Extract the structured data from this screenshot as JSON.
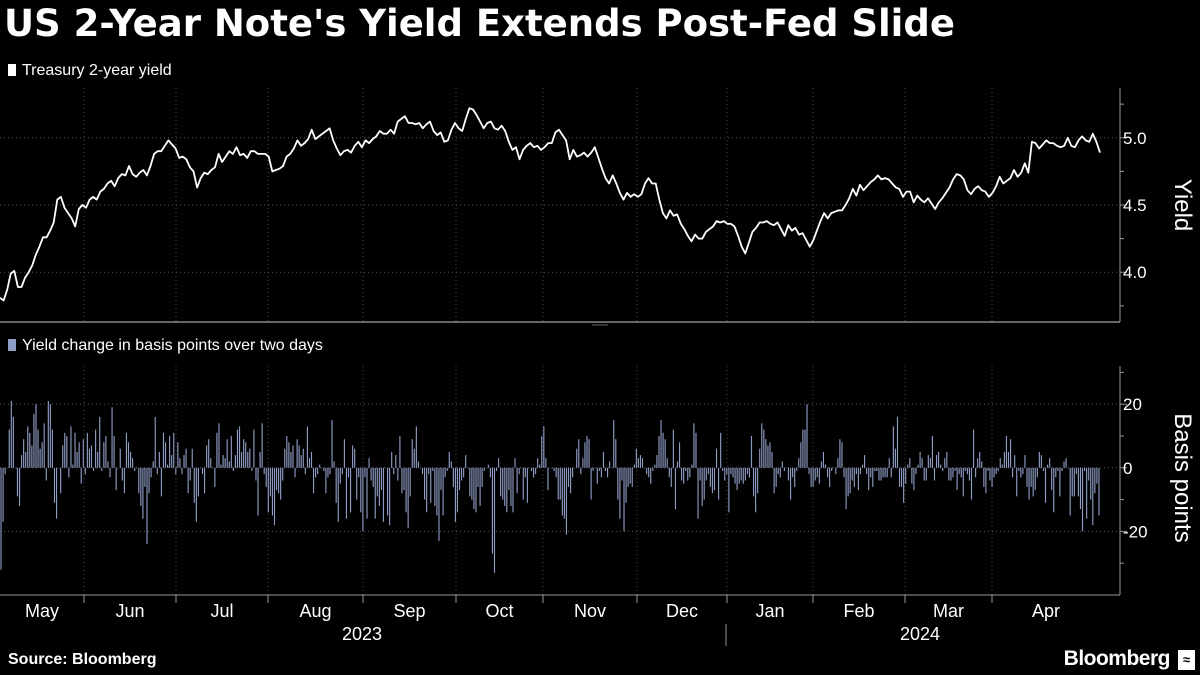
{
  "title": "US 2-Year Note's Yield Extends Post-Fed Slide",
  "source": "Source: Bloomberg",
  "brand": "Bloomberg",
  "colors": {
    "background": "#000000",
    "yield_line": "#ffffff",
    "bars": "#8f9cc4",
    "grid": "#6a6a6a"
  },
  "icons": {
    "brand": "bloomberg-chart-icon"
  },
  "chart_data": [
    {
      "type": "line",
      "legend": "Treasury 2-year yield",
      "ylabel": "Yield",
      "y_ticks": [
        "4.0",
        "4.5",
        "5.0"
      ],
      "ylim": [
        3.63,
        5.37
      ],
      "x_labels": [
        "May",
        "Jun",
        "Jul",
        "Aug",
        "Sep",
        "Oct",
        "Nov",
        "Dec",
        "Jan",
        "Feb",
        "Mar",
        "Apr"
      ],
      "year_labels": [
        "2023",
        "2024"
      ],
      "series": [
        {
          "name": "Treasury 2-year yield",
          "values": [
            3.81,
            3.79,
            3.87,
            3.99,
            4.01,
            3.89,
            3.89,
            3.96,
            4.0,
            4.05,
            4.13,
            4.19,
            4.26,
            4.26,
            4.31,
            4.37,
            4.54,
            4.56,
            4.48,
            4.44,
            4.4,
            4.34,
            4.47,
            4.5,
            4.48,
            4.54,
            4.56,
            4.54,
            4.6,
            4.62,
            4.66,
            4.68,
            4.64,
            4.7,
            4.73,
            4.72,
            4.79,
            4.73,
            4.71,
            4.74,
            4.76,
            4.72,
            4.79,
            4.88,
            4.9,
            4.9,
            4.94,
            4.98,
            4.95,
            4.92,
            4.85,
            4.86,
            4.84,
            4.78,
            4.75,
            4.63,
            4.7,
            4.74,
            4.73,
            4.76,
            4.78,
            4.88,
            4.82,
            4.86,
            4.9,
            4.88,
            4.93,
            4.87,
            4.88,
            4.85,
            4.9,
            4.9,
            4.88,
            4.88,
            4.88,
            4.86,
            4.75,
            4.76,
            4.77,
            4.79,
            4.86,
            4.88,
            4.92,
            4.98,
            4.94,
            4.96,
            4.99,
            5.06,
            4.99,
            5.01,
            5.03,
            5.05,
            5.07,
            4.98,
            4.92,
            4.87,
            4.9,
            4.91,
            4.89,
            4.94,
            4.97,
            4.93,
            4.98,
            4.96,
            4.99,
            5.01,
            5.05,
            5.03,
            5.03,
            5.06,
            5.03,
            5.12,
            5.14,
            5.16,
            5.11,
            5.11,
            5.1,
            5.11,
            5.07,
            5.1,
            5.12,
            5.05,
            5.02,
            5.04,
            4.97,
            4.98,
            5.06,
            5.11,
            5.07,
            5.05,
            5.14,
            5.22,
            5.21,
            5.17,
            5.12,
            5.07,
            5.11,
            5.12,
            5.07,
            5.06,
            5.09,
            5.05,
            4.97,
            4.91,
            4.93,
            4.84,
            4.91,
            4.94,
            4.96,
            4.93,
            4.94,
            4.91,
            4.93,
            4.96,
            4.96,
            5.04,
            5.06,
            5.02,
            4.98,
            4.84,
            4.91,
            4.86,
            4.87,
            4.89,
            4.86,
            4.89,
            4.93,
            4.85,
            4.77,
            4.7,
            4.66,
            4.72,
            4.66,
            4.59,
            4.54,
            4.59,
            4.56,
            4.58,
            4.56,
            4.58,
            4.66,
            4.7,
            4.66,
            4.66,
            4.54,
            4.44,
            4.4,
            4.46,
            4.42,
            4.43,
            4.36,
            4.32,
            4.27,
            4.23,
            4.28,
            4.25,
            4.25,
            4.3,
            4.32,
            4.34,
            4.38,
            4.37,
            4.38,
            4.36,
            4.36,
            4.34,
            4.27,
            4.19,
            4.14,
            4.22,
            4.3,
            4.33,
            4.37,
            4.37,
            4.38,
            4.36,
            4.35,
            4.37,
            4.32,
            4.27,
            4.35,
            4.31,
            4.33,
            4.28,
            4.29,
            4.24,
            4.19,
            4.24,
            4.31,
            4.38,
            4.44,
            4.4,
            4.44,
            4.45,
            4.46,
            4.46,
            4.5,
            4.55,
            4.62,
            4.57,
            4.65,
            4.61,
            4.64,
            4.67,
            4.69,
            4.72,
            4.69,
            4.7,
            4.69,
            4.66,
            4.63,
            4.62,
            4.56,
            4.6,
            4.6,
            4.52,
            4.57,
            4.54,
            4.52,
            4.55,
            4.51,
            4.47,
            4.52,
            4.55,
            4.59,
            4.63,
            4.69,
            4.73,
            4.72,
            4.69,
            4.61,
            4.58,
            4.62,
            4.64,
            4.61,
            4.6,
            4.56,
            4.59,
            4.64,
            4.71,
            4.66,
            4.68,
            4.7,
            4.76,
            4.71,
            4.74,
            4.81,
            4.74,
            4.97,
            4.96,
            4.92,
            4.95,
            4.98,
            4.96,
            4.96,
            4.94,
            4.93,
            4.94,
            5.0,
            4.94,
            4.93,
            4.98,
            5.01,
            4.98,
            4.97,
            5.03,
            4.97,
            4.89
          ]
        }
      ]
    },
    {
      "type": "bar",
      "legend": "Yield change in basis points over two days",
      "ylabel": "Basis points",
      "y_ticks": [
        "20",
        "0",
        "-20"
      ],
      "ylim": [
        -40,
        32
      ],
      "x_labels": [
        "May",
        "Jun",
        "Jul",
        "Aug",
        "Sep",
        "Oct",
        "Nov",
        "Dec",
        "Jan",
        "Feb",
        "Mar",
        "Apr"
      ],
      "year_labels": [
        "2023",
        "2024"
      ],
      "series": [
        {
          "name": "Yield change in basis points over two days",
          "values": [
            -32,
            -17,
            -2,
            0,
            12,
            21,
            16,
            0,
            -9,
            -12,
            4,
            9,
            5,
            13,
            11,
            7,
            17,
            20,
            12,
            6,
            8,
            14,
            -4,
            21,
            20,
            12,
            -11,
            -16,
            0,
            -8,
            7,
            11,
            10,
            -3,
            13,
            1,
            11,
            5,
            8,
            -5,
            9,
            -2,
            11,
            6,
            7,
            -1,
            12,
            5,
            16,
            -1,
            8,
            10,
            2,
            -3,
            19,
            10,
            -7,
            0,
            6,
            -4,
            -8,
            11,
            8,
            5,
            3,
            -1,
            0,
            -8,
            -12,
            -16,
            -6,
            -24,
            -8,
            -3,
            2,
            16,
            -2,
            5,
            -9,
            11,
            8,
            1,
            10,
            4,
            11,
            -2,
            8,
            3,
            -2,
            4,
            6,
            -8,
            -4,
            6,
            -11,
            -17,
            -9,
            0,
            -2,
            -8,
            7,
            9,
            3,
            0,
            -6,
            11,
            14,
            1,
            4,
            3,
            9,
            2,
            10,
            -1,
            4,
            12,
            13,
            5,
            9,
            8,
            5,
            6,
            -1,
            12,
            -4,
            -15,
            5,
            14,
            -2,
            -6,
            -14,
            -9,
            -15,
            -18,
            -7,
            -8,
            -10,
            -4,
            6,
            10,
            8,
            5,
            7,
            -3,
            9,
            7,
            4,
            6,
            -2,
            13,
            3,
            5,
            -8,
            -3,
            -2,
            1,
            0,
            -1,
            -8,
            -3,
            -2,
            15,
            2,
            -11,
            -17,
            -5,
            -2,
            9,
            -16,
            -3,
            -14,
            7,
            6,
            -10,
            -3,
            -14,
            -20,
            -3,
            -16,
            3,
            -4,
            -6,
            -16,
            -9,
            -12,
            -7,
            -17,
            0,
            -15,
            -18,
            5,
            -2,
            4,
            -4,
            10,
            -8,
            -7,
            -14,
            -19,
            -9,
            9,
            6,
            13,
            2,
            0,
            -2,
            -10,
            -14,
            -2,
            -11,
            -1,
            -12,
            -15,
            -23,
            -7,
            -15,
            -3,
            -1,
            5,
            2,
            -6,
            -17,
            -14,
            -7,
            -4,
            -3,
            4,
            0,
            -9,
            -10,
            -13,
            -14,
            -6,
            -12,
            -6,
            -1,
            0,
            1,
            -3,
            -27,
            -33,
            -1,
            3,
            -9,
            -10,
            -12,
            -14,
            -7,
            -12,
            -14,
            3,
            -8,
            -2,
            0,
            -10,
            -3,
            -11,
            0,
            -1,
            -3,
            -2,
            3,
            1,
            10,
            13,
            3,
            -7,
            0,
            0,
            -1,
            -3,
            -10,
            -10,
            -15,
            -16,
            -21,
            -6,
            -8,
            -3,
            0,
            6,
            9,
            -2,
            3,
            8,
            10,
            9,
            -10,
            -1,
            0,
            -5,
            -1,
            -3,
            5,
            -1,
            -3,
            2,
            0,
            15,
            9,
            -10,
            -16,
            -4,
            -20,
            -11,
            -6,
            -5,
            -6,
            1,
            6,
            3,
            4,
            3,
            0,
            -2,
            -3,
            -5,
            -1,
            1,
            4,
            10,
            15,
            11,
            9,
            3,
            -3,
            -6,
            12,
            -13,
            2,
            8,
            -4,
            -5,
            -1,
            -4,
            -3,
            1,
            14,
            11,
            -16,
            -4,
            -12,
            -10,
            -4,
            -2,
            -6,
            -8,
            -7,
            6,
            -10,
            11,
            -1,
            -4,
            -2,
            -14,
            -2,
            -3,
            -5,
            -7,
            -5,
            -4,
            -5,
            -4,
            -2,
            -3,
            10,
            -9,
            -14,
            -8,
            6,
            14,
            12,
            9,
            7,
            8,
            5,
            -8,
            -6,
            -2,
            -3,
            2,
            -1,
            0,
            -4,
            -10,
            -3,
            -6,
            -1,
            3,
            8,
            12,
            12,
            20,
            -2,
            -6,
            -6,
            -4,
            -3,
            -5,
            2,
            5,
            1,
            -3,
            -6,
            -1,
            0,
            -2,
            3,
            9,
            8,
            -3,
            -13,
            -9,
            -8,
            -4,
            -6,
            -2,
            -7,
            -2,
            1,
            4,
            -2,
            -7,
            -3,
            -6,
            -1,
            -1,
            -4,
            -4,
            -3,
            -3,
            -3,
            3,
            -3,
            13,
            6,
            16,
            -6,
            -6,
            -11,
            -5,
            1,
            3,
            -5,
            -7,
            -2,
            1,
            5,
            3,
            -4,
            -4,
            4,
            3,
            10,
            -4,
            4,
            5,
            1,
            -1,
            3,
            5,
            -4,
            -4,
            -3,
            -1,
            -7,
            -2,
            -3,
            -9,
            -1,
            -2,
            -4,
            -10,
            12,
            -3,
            3,
            5,
            2,
            -6,
            -8,
            -1,
            -4,
            -6,
            -3,
            -2,
            -1,
            3,
            1,
            5,
            10,
            5,
            9,
            -3,
            4,
            -9,
            -1,
            -3,
            -2,
            4,
            -6,
            -10,
            -6,
            -9,
            -7,
            -3,
            5,
            4,
            -1,
            -11,
            1,
            3,
            -7,
            -14,
            -3,
            -1,
            -9,
            -1,
            2,
            3,
            0,
            -15,
            -9,
            -9,
            -2,
            -9,
            -13,
            -20,
            -1,
            -16,
            -4,
            -10,
            -18,
            -8,
            -5,
            -15
          ]
        }
      ]
    }
  ]
}
